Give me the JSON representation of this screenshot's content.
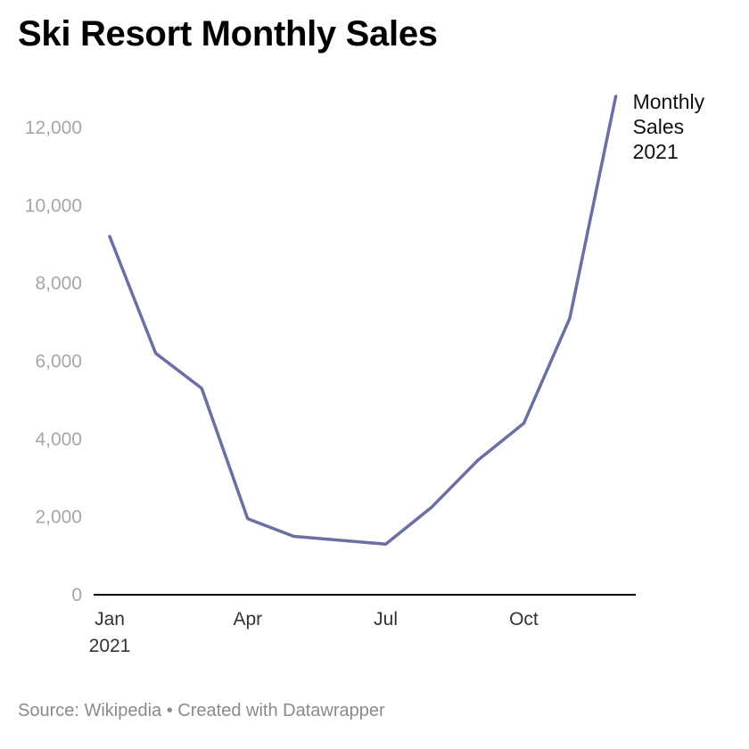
{
  "title": "Ski Resort Monthly Sales",
  "source": "Source: Wikipedia • Created with Datawrapper",
  "colors": {
    "line": "#6b6fa3",
    "axis": "#000000"
  },
  "chart_data": {
    "type": "line",
    "title": "Ski Resort Monthly Sales",
    "xlabel": "",
    "ylabel": "",
    "x": [
      "2021-01",
      "2021-02",
      "2021-03",
      "2021-04",
      "2021-05",
      "2021-06",
      "2021-07",
      "2021-08",
      "2021-09",
      "2021-10",
      "2021-11",
      "2021-12"
    ],
    "x_tick_labels": [
      "Jan",
      "Apr",
      "Jul",
      "Oct"
    ],
    "x_tick_values": [
      "2021-01",
      "2021-04",
      "2021-07",
      "2021-10"
    ],
    "x_year_label": "2021",
    "y_ticks": [
      0,
      2000,
      4000,
      6000,
      8000,
      10000,
      12000
    ],
    "y_tick_labels": [
      "0",
      "2,000",
      "4,000",
      "6,000",
      "8,000",
      "10,000",
      "12,000"
    ],
    "ylim": [
      0,
      12800
    ],
    "grid": false,
    "series": [
      {
        "name": "Monthly Sales 2021",
        "label_lines": [
          "Monthly",
          "Sales",
          "2021"
        ],
        "values": [
          9200,
          6200,
          5300,
          1950,
          1500,
          1400,
          1300,
          2250,
          3450,
          4400,
          7100,
          12800
        ]
      }
    ]
  }
}
